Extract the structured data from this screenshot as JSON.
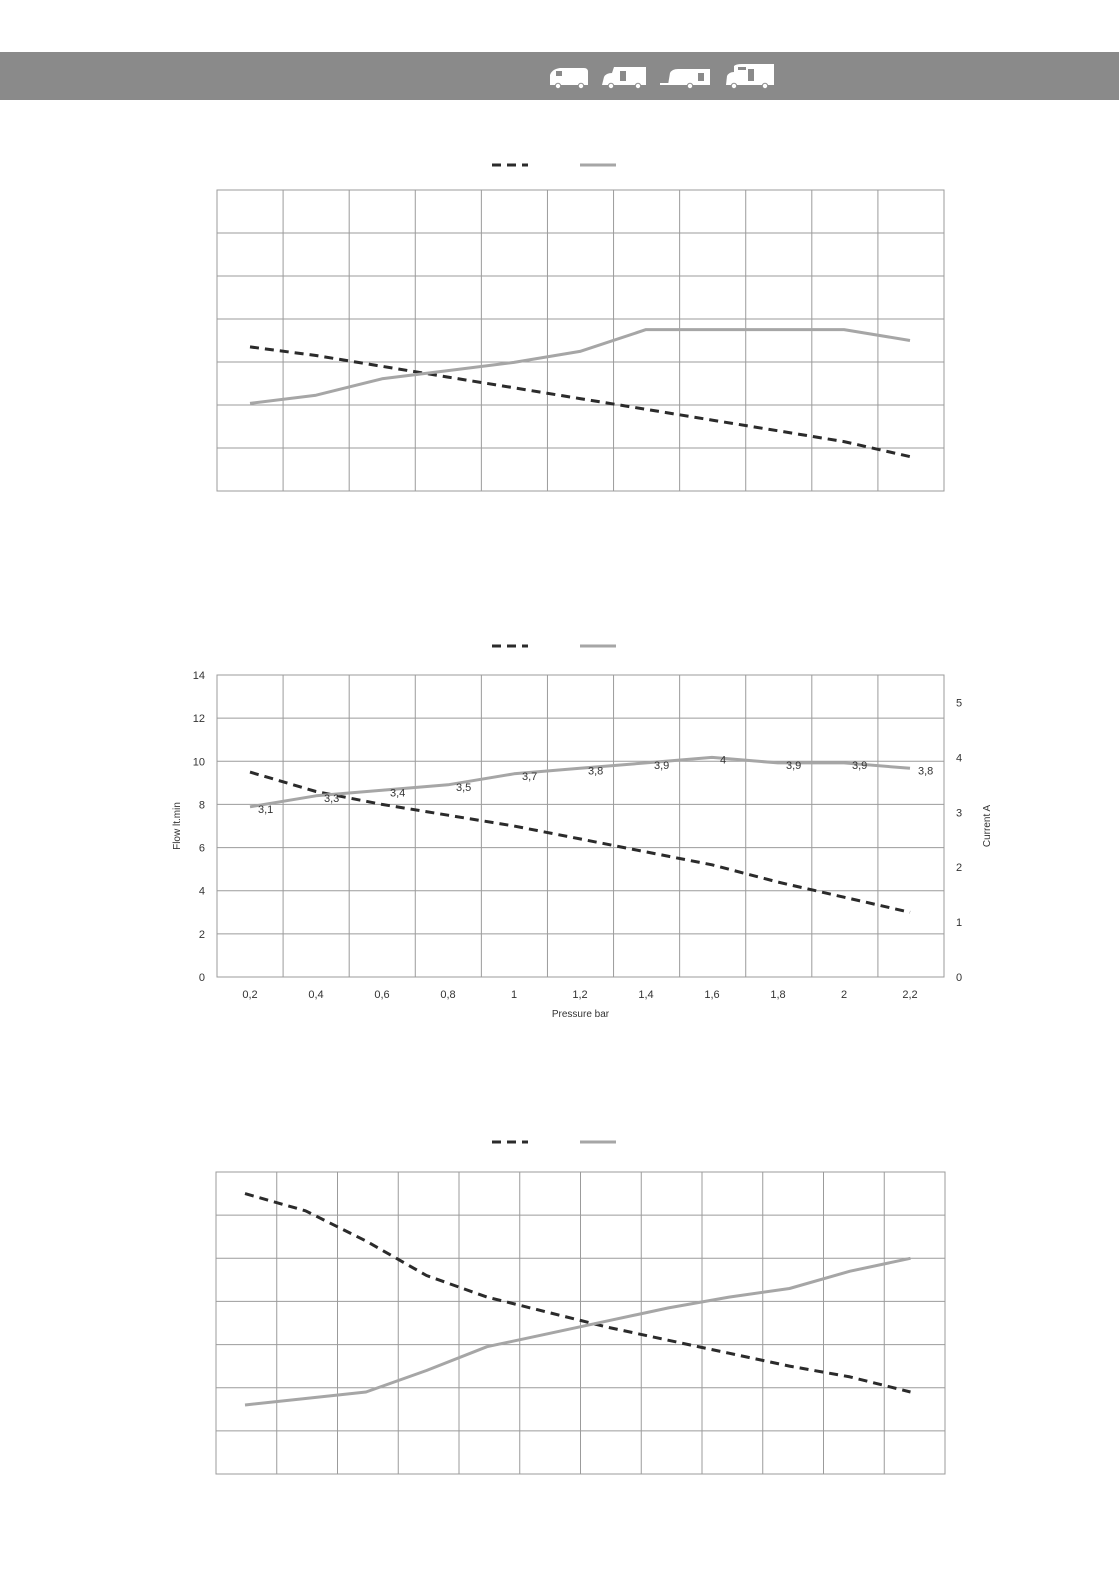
{
  "header": {
    "background": "#8a8a8a",
    "icons": [
      "van-icon",
      "motorhome-icon",
      "caravan-icon",
      "coachbuilt-motorhome-icon"
    ]
  },
  "styles": {
    "flow_color": "#2b2b2b",
    "current_color": "#a6a6a6",
    "grid_color": "#9b9b9b",
    "label_color": "#333333"
  },
  "chart_data": [
    {
      "type": "line",
      "title": "",
      "grid": true,
      "legend": "top-center",
      "x": [
        0.2,
        0.4,
        0.6,
        0.8,
        1.0,
        1.2,
        1.4,
        1.6,
        1.8,
        2.0,
        2.2
      ],
      "ylim": [
        0,
        14
      ],
      "y2lim": [
        0,
        5.5
      ],
      "series": [
        {
          "style": "dashed-black",
          "axis": "left",
          "values": [
            6.7,
            6.3,
            5.8,
            5.3,
            4.8,
            4.3,
            3.8,
            3.3,
            2.8,
            2.3,
            1.6
          ]
        },
        {
          "style": "solid-gray",
          "axis": "right",
          "values": [
            1.6,
            1.75,
            2.05,
            2.2,
            2.35,
            2.55,
            2.95,
            2.95,
            2.95,
            2.95,
            2.75
          ]
        }
      ]
    },
    {
      "type": "line",
      "title": "",
      "grid": true,
      "legend": "top-center",
      "xlabel": "Pressure bar",
      "ylabel": "Flow lt.min",
      "y2label": "Current A",
      "x": [
        0.2,
        0.4,
        0.6,
        0.8,
        1.0,
        1.2,
        1.4,
        1.6,
        1.8,
        2.0,
        2.2
      ],
      "x_ticks": [
        "0,2",
        "0,4",
        "0,6",
        "0,8",
        "1",
        "1,2",
        "1,4",
        "1,6",
        "1,8",
        "2",
        "2,2"
      ],
      "ylim": [
        0,
        14
      ],
      "y_ticks": [
        "0",
        "2",
        "4",
        "6",
        "8",
        "10",
        "12",
        "14"
      ],
      "y2lim": [
        0,
        5.5
      ],
      "y2_ticks": [
        "0",
        "1",
        "2",
        "3",
        "4",
        "5"
      ],
      "series": [
        {
          "style": "dashed-black",
          "axis": "left",
          "values": [
            9.5,
            8.6,
            8.0,
            7.5,
            7.0,
            6.4,
            5.8,
            5.2,
            4.4,
            3.7,
            3.0
          ]
        },
        {
          "style": "solid-gray",
          "axis": "right",
          "values": [
            3.1,
            3.3,
            3.4,
            3.5,
            3.7,
            3.8,
            3.9,
            4.0,
            3.9,
            3.9,
            3.8
          ],
          "data_labels": [
            "3,1",
            "3,3",
            "3,4",
            "3,5",
            "3,7",
            "3,8",
            "3,9",
            "4",
            "3,9",
            "3,9",
            "3,8"
          ]
        }
      ]
    },
    {
      "type": "line",
      "title": "",
      "grid": true,
      "legend": "top-center",
      "x": [
        0.2,
        0.4,
        0.6,
        0.8,
        1.0,
        1.2,
        1.4,
        1.6,
        1.8,
        2.0,
        2.2,
        2.4
      ],
      "ylim": [
        0,
        14
      ],
      "y2lim": [
        0,
        7
      ],
      "series": [
        {
          "style": "dashed-black",
          "axis": "left",
          "values": [
            13.0,
            12.2,
            10.8,
            9.2,
            8.2,
            7.5,
            6.8,
            6.2,
            5.6,
            5.0,
            4.5,
            3.8
          ]
        },
        {
          "style": "solid-gray",
          "axis": "right",
          "values": [
            1.6,
            1.75,
            1.9,
            2.4,
            2.95,
            3.25,
            3.55,
            3.85,
            4.1,
            4.3,
            4.7,
            5.0
          ]
        }
      ]
    }
  ]
}
